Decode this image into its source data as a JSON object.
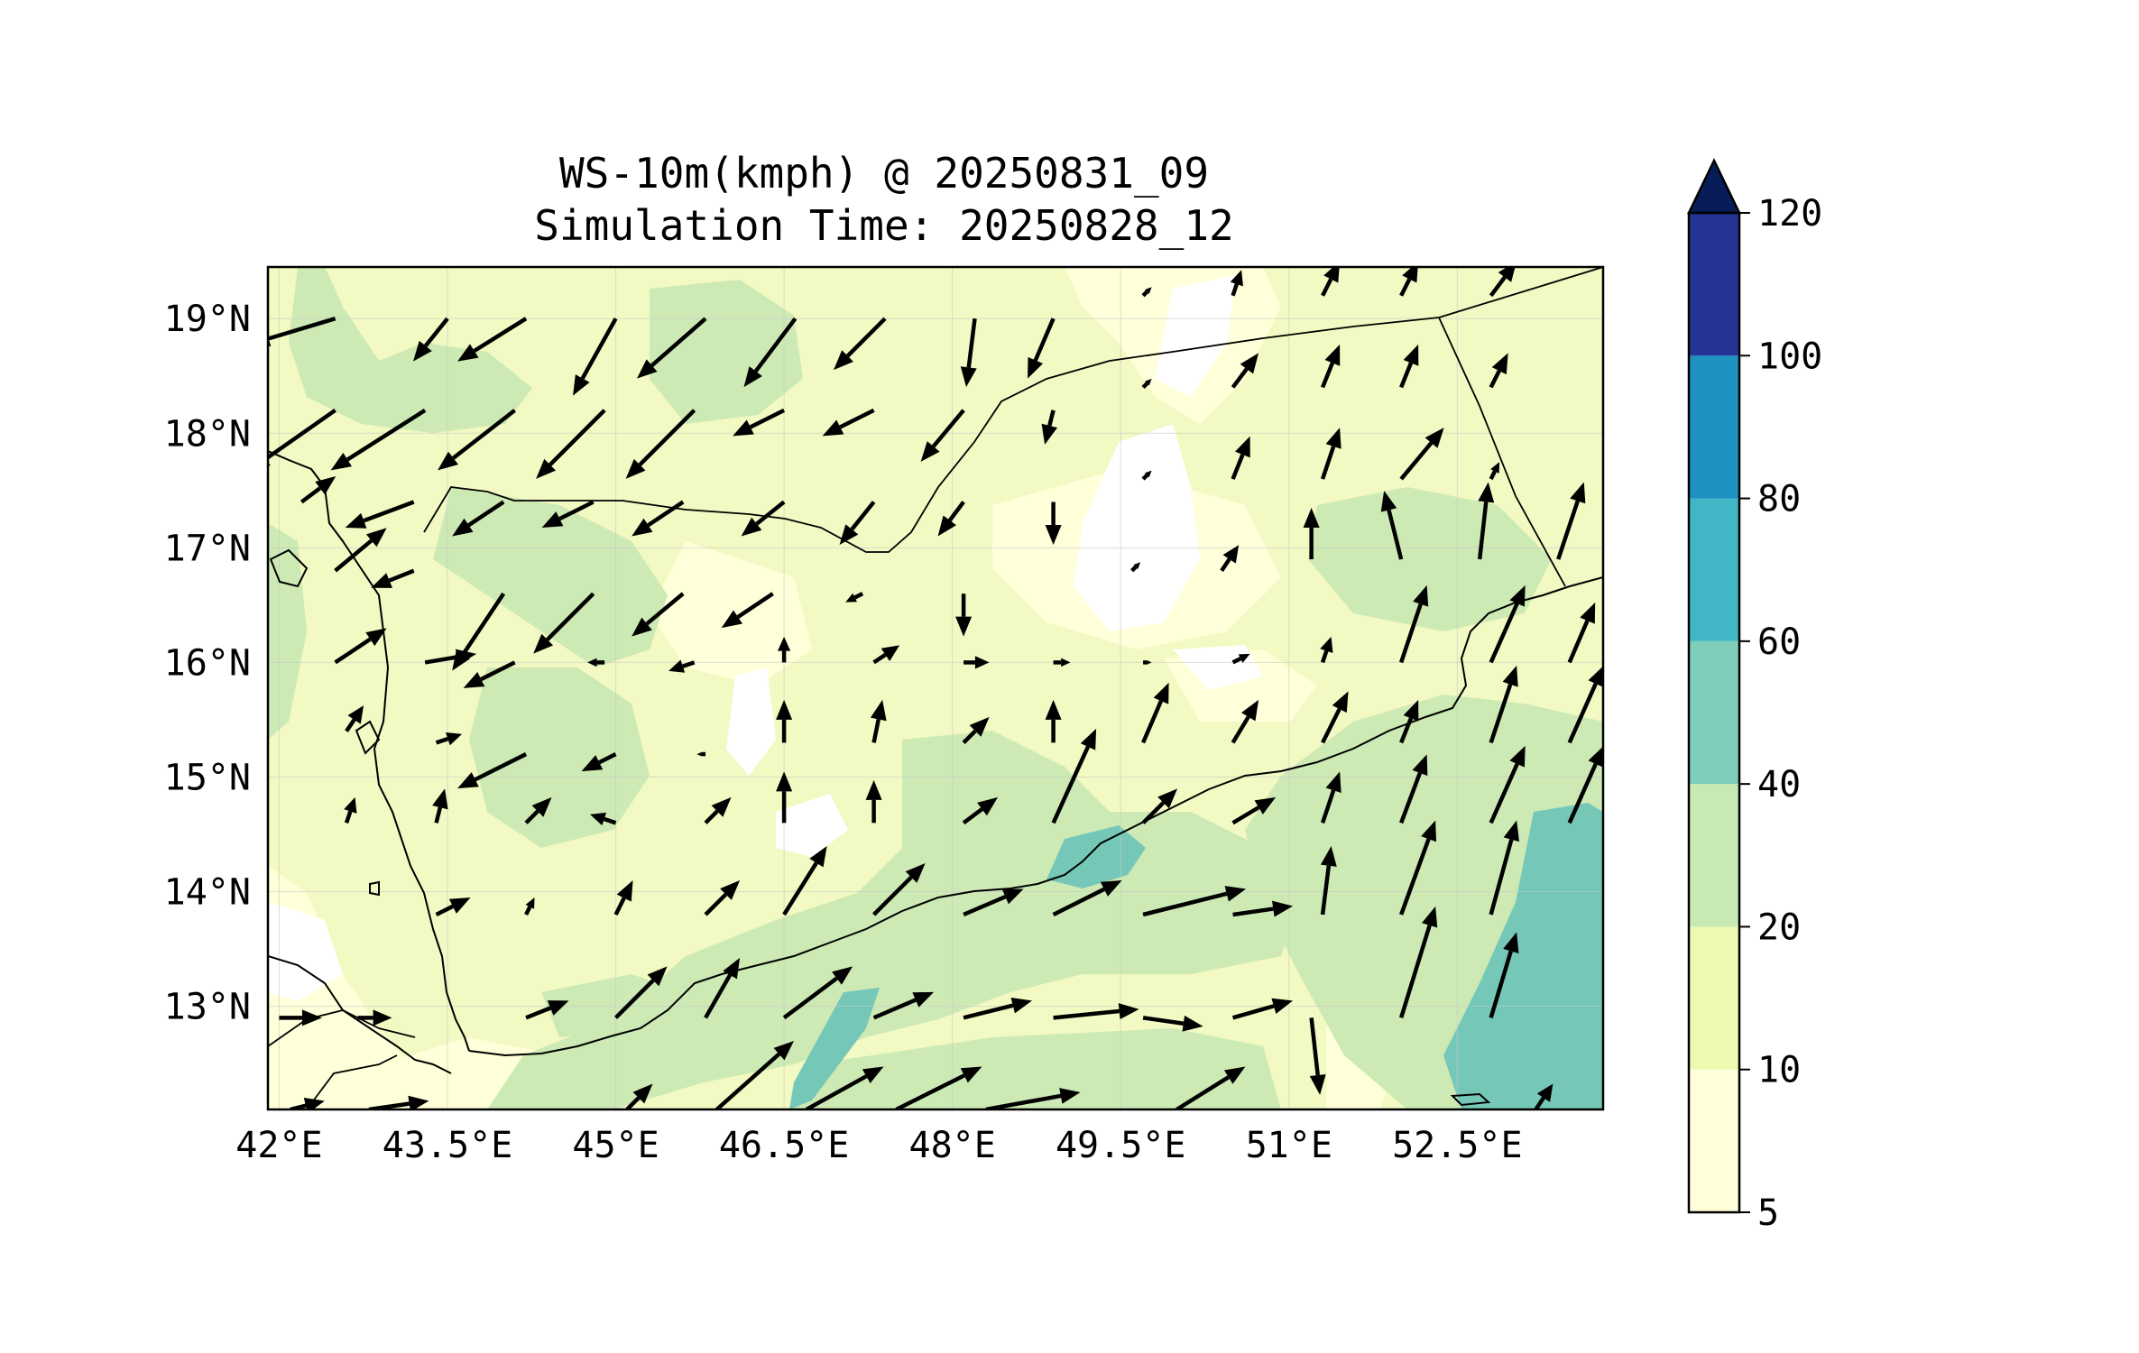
{
  "title": {
    "line1": "WS-10m(kmph) @ 20250831_09",
    "line2": "Simulation Time: 20250828_12"
  },
  "map": {
    "lon_range": [
      41.9,
      53.8
    ],
    "lat_range": [
      12.1,
      19.45
    ],
    "lon_ticks": [
      {
        "value": 42,
        "label": "42°E"
      },
      {
        "value": 43.5,
        "label": "43.5°E"
      },
      {
        "value": 45,
        "label": "45°E"
      },
      {
        "value": 46.5,
        "label": "46.5°E"
      },
      {
        "value": 48,
        "label": "48°E"
      },
      {
        "value": 49.5,
        "label": "49.5°E"
      },
      {
        "value": 51,
        "label": "51°E"
      },
      {
        "value": 52.5,
        "label": "52.5°E"
      }
    ],
    "lat_ticks": [
      {
        "value": 19,
        "label": "19°N"
      },
      {
        "value": 18,
        "label": "18°N"
      },
      {
        "value": 17,
        "label": "17°N"
      },
      {
        "value": 16,
        "label": "16°N"
      },
      {
        "value": 15,
        "label": "15°N"
      },
      {
        "value": 14,
        "label": "14°N"
      },
      {
        "value": 13,
        "label": "13°N"
      }
    ],
    "grid": true,
    "background_level_color": "#f2f9c2"
  },
  "colorbar": {
    "levels": [
      "5",
      "10",
      "20",
      "40",
      "60",
      "80",
      "100",
      "120"
    ],
    "colors": [
      "#ffffd9",
      "#edf8b1",
      "#c7e9b4",
      "#7fcdbb",
      "#41b6c4",
      "#1d91c0",
      "#253494"
    ],
    "extend_color": "#081d58",
    "extend": "max"
  },
  "chart_data": {
    "type": "heatmap",
    "variable": "WS-10m(kmph)",
    "quiver": [
      {
        "lon": 42.5,
        "lat": 19.0,
        "u": -1.0,
        "v": -0.3
      },
      {
        "lon": 43.5,
        "lat": 19.0,
        "u": -0.4,
        "v": -0.5
      },
      {
        "lon": 44.2,
        "lat": 19.0,
        "u": -0.8,
        "v": -0.5
      },
      {
        "lon": 45.0,
        "lat": 19.0,
        "u": -0.5,
        "v": -0.9
      },
      {
        "lon": 45.8,
        "lat": 19.0,
        "u": -0.8,
        "v": -0.7
      },
      {
        "lon": 46.6,
        "lat": 19.0,
        "u": -0.6,
        "v": -0.8
      },
      {
        "lon": 47.4,
        "lat": 19.0,
        "u": -0.6,
        "v": -0.6
      },
      {
        "lon": 48.2,
        "lat": 19.0,
        "u": -0.1,
        "v": -0.8
      },
      {
        "lon": 48.9,
        "lat": 19.0,
        "u": -0.3,
        "v": -0.7
      },
      {
        "lon": 49.7,
        "lat": 19.2,
        "u": 0.1,
        "v": 0.1
      },
      {
        "lon": 50.5,
        "lat": 19.2,
        "u": 0.1,
        "v": 0.3
      },
      {
        "lon": 51.3,
        "lat": 19.2,
        "u": 0.2,
        "v": 0.4
      },
      {
        "lon": 52.0,
        "lat": 19.2,
        "u": 0.2,
        "v": 0.4
      },
      {
        "lon": 52.8,
        "lat": 19.2,
        "u": 0.3,
        "v": 0.4
      },
      {
        "lon": 42.5,
        "lat": 18.2,
        "u": -1.0,
        "v": -0.7
      },
      {
        "lon": 43.3,
        "lat": 18.2,
        "u": -1.1,
        "v": -0.7
      },
      {
        "lon": 44.1,
        "lat": 18.2,
        "u": -0.9,
        "v": -0.7
      },
      {
        "lon": 44.9,
        "lat": 18.2,
        "u": -0.8,
        "v": -0.8
      },
      {
        "lon": 45.7,
        "lat": 18.2,
        "u": -0.8,
        "v": -0.8
      },
      {
        "lon": 46.5,
        "lat": 18.2,
        "u": -0.6,
        "v": -0.3
      },
      {
        "lon": 47.3,
        "lat": 18.2,
        "u": -0.6,
        "v": -0.3
      },
      {
        "lon": 48.1,
        "lat": 18.2,
        "u": -0.5,
        "v": -0.6
      },
      {
        "lon": 48.9,
        "lat": 18.2,
        "u": -0.1,
        "v": -0.4
      },
      {
        "lon": 49.7,
        "lat": 18.4,
        "u": 0.1,
        "v": 0.1
      },
      {
        "lon": 50.5,
        "lat": 18.4,
        "u": 0.3,
        "v": 0.4
      },
      {
        "lon": 51.3,
        "lat": 18.4,
        "u": 0.2,
        "v": 0.5
      },
      {
        "lon": 52.0,
        "lat": 18.4,
        "u": 0.2,
        "v": 0.5
      },
      {
        "lon": 52.8,
        "lat": 18.4,
        "u": 0.2,
        "v": 0.4
      },
      {
        "lon": 42.2,
        "lat": 17.4,
        "u": 0.4,
        "v": 0.3
      },
      {
        "lon": 43.2,
        "lat": 17.4,
        "u": -0.8,
        "v": -0.3
      },
      {
        "lon": 44.0,
        "lat": 17.4,
        "u": -0.6,
        "v": -0.4
      },
      {
        "lon": 44.8,
        "lat": 17.4,
        "u": -0.6,
        "v": -0.3
      },
      {
        "lon": 45.6,
        "lat": 17.4,
        "u": -0.6,
        "v": -0.4
      },
      {
        "lon": 46.5,
        "lat": 17.4,
        "u": -0.5,
        "v": -0.4
      },
      {
        "lon": 47.3,
        "lat": 17.4,
        "u": -0.4,
        "v": -0.5
      },
      {
        "lon": 48.1,
        "lat": 17.4,
        "u": -0.3,
        "v": -0.4
      },
      {
        "lon": 48.9,
        "lat": 17.4,
        "u": 0.0,
        "v": -0.5
      },
      {
        "lon": 49.7,
        "lat": 17.6,
        "u": 0.1,
        "v": 0.1
      },
      {
        "lon": 50.5,
        "lat": 17.6,
        "u": 0.2,
        "v": 0.5
      },
      {
        "lon": 51.3,
        "lat": 17.6,
        "u": 0.2,
        "v": 0.6
      },
      {
        "lon": 52.0,
        "lat": 17.6,
        "u": 0.5,
        "v": 0.6
      },
      {
        "lon": 52.8,
        "lat": 17.6,
        "u": 0.1,
        "v": 0.2
      },
      {
        "lon": 42.5,
        "lat": 16.8,
        "u": 0.6,
        "v": 0.5
      },
      {
        "lon": 43.2,
        "lat": 16.8,
        "u": -0.5,
        "v": -0.2
      },
      {
        "lon": 44.0,
        "lat": 16.6,
        "u": -0.6,
        "v": -0.9
      },
      {
        "lon": 44.8,
        "lat": 16.6,
        "u": -0.7,
        "v": -0.7
      },
      {
        "lon": 45.6,
        "lat": 16.6,
        "u": -0.6,
        "v": -0.5
      },
      {
        "lon": 46.4,
        "lat": 16.6,
        "u": -0.6,
        "v": -0.4
      },
      {
        "lon": 47.2,
        "lat": 16.6,
        "u": -0.2,
        "v": -0.1
      },
      {
        "lon": 48.1,
        "lat": 16.6,
        "u": 0.0,
        "v": -0.5
      },
      {
        "lon": 49.6,
        "lat": 16.8,
        "u": 0.1,
        "v": 0.1
      },
      {
        "lon": 50.4,
        "lat": 16.8,
        "u": 0.2,
        "v": 0.3
      },
      {
        "lon": 51.2,
        "lat": 16.9,
        "u": 0.0,
        "v": 0.6
      },
      {
        "lon": 52.0,
        "lat": 16.9,
        "u": -0.2,
        "v": 0.8
      },
      {
        "lon": 52.7,
        "lat": 16.9,
        "u": 0.1,
        "v": 0.9
      },
      {
        "lon": 53.4,
        "lat": 16.9,
        "u": 0.3,
        "v": 0.9
      },
      {
        "lon": 42.5,
        "lat": 16.0,
        "u": 0.6,
        "v": 0.4
      },
      {
        "lon": 43.3,
        "lat": 16.0,
        "u": 0.6,
        "v": 0.1
      },
      {
        "lon": 44.1,
        "lat": 16.0,
        "u": -0.6,
        "v": -0.3
      },
      {
        "lon": 44.9,
        "lat": 16.0,
        "u": -0.2,
        "v": 0.0
      },
      {
        "lon": 45.7,
        "lat": 16.0,
        "u": -0.3,
        "v": -0.1
      },
      {
        "lon": 46.5,
        "lat": 16.0,
        "u": 0.0,
        "v": 0.3
      },
      {
        "lon": 47.3,
        "lat": 16.0,
        "u": 0.3,
        "v": 0.2
      },
      {
        "lon": 48.1,
        "lat": 16.0,
        "u": 0.3,
        "v": 0.0
      },
      {
        "lon": 48.9,
        "lat": 16.0,
        "u": 0.2,
        "v": 0.0
      },
      {
        "lon": 49.7,
        "lat": 16.0,
        "u": 0.1,
        "v": 0.0
      },
      {
        "lon": 50.5,
        "lat": 16.0,
        "u": 0.2,
        "v": 0.1
      },
      {
        "lon": 51.3,
        "lat": 16.0,
        "u": 0.1,
        "v": 0.3
      },
      {
        "lon": 52.0,
        "lat": 16.0,
        "u": 0.3,
        "v": 0.9
      },
      {
        "lon": 52.8,
        "lat": 16.0,
        "u": 0.4,
        "v": 0.9
      },
      {
        "lon": 53.5,
        "lat": 16.0,
        "u": 0.3,
        "v": 0.7
      },
      {
        "lon": 42.6,
        "lat": 15.4,
        "u": 0.2,
        "v": 0.3
      },
      {
        "lon": 43.4,
        "lat": 15.3,
        "u": 0.3,
        "v": 0.1
      },
      {
        "lon": 44.2,
        "lat": 15.2,
        "u": -0.8,
        "v": -0.4
      },
      {
        "lon": 45.0,
        "lat": 15.2,
        "u": -0.4,
        "v": -0.2
      },
      {
        "lon": 45.8,
        "lat": 15.2,
        "u": -0.1,
        "v": 0.0
      },
      {
        "lon": 46.5,
        "lat": 15.3,
        "u": 0.0,
        "v": 0.5
      },
      {
        "lon": 47.3,
        "lat": 15.3,
        "u": 0.1,
        "v": 0.5
      },
      {
        "lon": 48.1,
        "lat": 15.3,
        "u": 0.3,
        "v": 0.3
      },
      {
        "lon": 48.9,
        "lat": 15.3,
        "u": 0.0,
        "v": 0.5
      },
      {
        "lon": 49.7,
        "lat": 15.3,
        "u": 0.3,
        "v": 0.7
      },
      {
        "lon": 50.5,
        "lat": 15.3,
        "u": 0.3,
        "v": 0.5
      },
      {
        "lon": 51.3,
        "lat": 15.3,
        "u": 0.3,
        "v": 0.6
      },
      {
        "lon": 52.0,
        "lat": 15.3,
        "u": 0.2,
        "v": 0.5
      },
      {
        "lon": 52.8,
        "lat": 15.3,
        "u": 0.3,
        "v": 0.9
      },
      {
        "lon": 53.5,
        "lat": 15.3,
        "u": 0.4,
        "v": 0.9
      },
      {
        "lon": 42.6,
        "lat": 14.6,
        "u": 0.1,
        "v": 0.3
      },
      {
        "lon": 43.4,
        "lat": 14.6,
        "u": 0.1,
        "v": 0.4
      },
      {
        "lon": 44.2,
        "lat": 14.6,
        "u": 0.3,
        "v": 0.3
      },
      {
        "lon": 45.0,
        "lat": 14.6,
        "u": -0.3,
        "v": 0.1
      },
      {
        "lon": 45.8,
        "lat": 14.6,
        "u": 0.3,
        "v": 0.3
      },
      {
        "lon": 46.5,
        "lat": 14.6,
        "u": 0.0,
        "v": 0.6
      },
      {
        "lon": 47.3,
        "lat": 14.6,
        "u": 0.0,
        "v": 0.5
      },
      {
        "lon": 48.1,
        "lat": 14.6,
        "u": 0.4,
        "v": 0.3
      },
      {
        "lon": 48.9,
        "lat": 14.6,
        "u": 0.5,
        "v": 1.1
      },
      {
        "lon": 49.7,
        "lat": 14.6,
        "u": 0.4,
        "v": 0.4
      },
      {
        "lon": 50.5,
        "lat": 14.6,
        "u": 0.5,
        "v": 0.3
      },
      {
        "lon": 51.3,
        "lat": 14.6,
        "u": 0.2,
        "v": 0.6
      },
      {
        "lon": 52.0,
        "lat": 14.6,
        "u": 0.3,
        "v": 0.8
      },
      {
        "lon": 52.8,
        "lat": 14.6,
        "u": 0.4,
        "v": 0.9
      },
      {
        "lon": 53.5,
        "lat": 14.6,
        "u": 0.4,
        "v": 0.9
      },
      {
        "lon": 43.4,
        "lat": 13.8,
        "u": 0.4,
        "v": 0.2
      },
      {
        "lon": 44.2,
        "lat": 13.8,
        "u": 0.1,
        "v": 0.2
      },
      {
        "lon": 45.0,
        "lat": 13.8,
        "u": 0.2,
        "v": 0.4
      },
      {
        "lon": 45.8,
        "lat": 13.8,
        "u": 0.4,
        "v": 0.4
      },
      {
        "lon": 46.5,
        "lat": 13.8,
        "u": 0.5,
        "v": 0.8
      },
      {
        "lon": 47.3,
        "lat": 13.8,
        "u": 0.6,
        "v": 0.6
      },
      {
        "lon": 48.1,
        "lat": 13.8,
        "u": 0.7,
        "v": 0.3
      },
      {
        "lon": 48.9,
        "lat": 13.8,
        "u": 0.8,
        "v": 0.4
      },
      {
        "lon": 49.7,
        "lat": 13.8,
        "u": 1.2,
        "v": 0.3
      },
      {
        "lon": 50.5,
        "lat": 13.8,
        "u": 0.7,
        "v": 0.1
      },
      {
        "lon": 51.3,
        "lat": 13.8,
        "u": 0.1,
        "v": 0.8
      },
      {
        "lon": 52.0,
        "lat": 13.8,
        "u": 0.4,
        "v": 1.1
      },
      {
        "lon": 52.8,
        "lat": 13.8,
        "u": 0.3,
        "v": 1.1
      },
      {
        "lon": 42.0,
        "lat": 12.9,
        "u": 0.5,
        "v": 0.0
      },
      {
        "lon": 42.7,
        "lat": 12.9,
        "u": 0.4,
        "v": 0.0
      },
      {
        "lon": 44.2,
        "lat": 12.9,
        "u": 0.5,
        "v": 0.2
      },
      {
        "lon": 45.0,
        "lat": 12.9,
        "u": 0.6,
        "v": 0.6
      },
      {
        "lon": 45.8,
        "lat": 12.9,
        "u": 0.4,
        "v": 0.7
      },
      {
        "lon": 46.5,
        "lat": 12.9,
        "u": 0.8,
        "v": 0.6
      },
      {
        "lon": 47.3,
        "lat": 12.9,
        "u": 0.7,
        "v": 0.3
      },
      {
        "lon": 48.1,
        "lat": 12.9,
        "u": 0.8,
        "v": 0.2
      },
      {
        "lon": 48.9,
        "lat": 12.9,
        "u": 1.0,
        "v": 0.1
      },
      {
        "lon": 49.7,
        "lat": 12.9,
        "u": 0.7,
        "v": -0.1
      },
      {
        "lon": 50.5,
        "lat": 12.9,
        "u": 0.7,
        "v": 0.2
      },
      {
        "lon": 51.2,
        "lat": 12.9,
        "u": 0.1,
        "v": -0.9
      },
      {
        "lon": 52.0,
        "lat": 12.9,
        "u": 0.4,
        "v": 1.3
      },
      {
        "lon": 52.8,
        "lat": 12.9,
        "u": 0.3,
        "v": 1.0
      },
      {
        "lon": 42.1,
        "lat": 12.1,
        "u": 0.4,
        "v": 0.1
      },
      {
        "lon": 42.8,
        "lat": 12.1,
        "u": 0.7,
        "v": 0.1
      },
      {
        "lon": 45.1,
        "lat": 12.1,
        "u": 0.3,
        "v": 0.3
      },
      {
        "lon": 45.9,
        "lat": 12.1,
        "u": 0.9,
        "v": 0.8
      },
      {
        "lon": 46.7,
        "lat": 12.1,
        "u": 0.9,
        "v": 0.5
      },
      {
        "lon": 47.5,
        "lat": 12.1,
        "u": 1.0,
        "v": 0.5
      },
      {
        "lon": 48.3,
        "lat": 12.1,
        "u": 1.1,
        "v": 0.2
      },
      {
        "lon": 50.0,
        "lat": 12.1,
        "u": 0.8,
        "v": 0.5
      },
      {
        "lon": 53.2,
        "lat": 12.1,
        "u": 0.2,
        "v": 0.3
      }
    ]
  }
}
